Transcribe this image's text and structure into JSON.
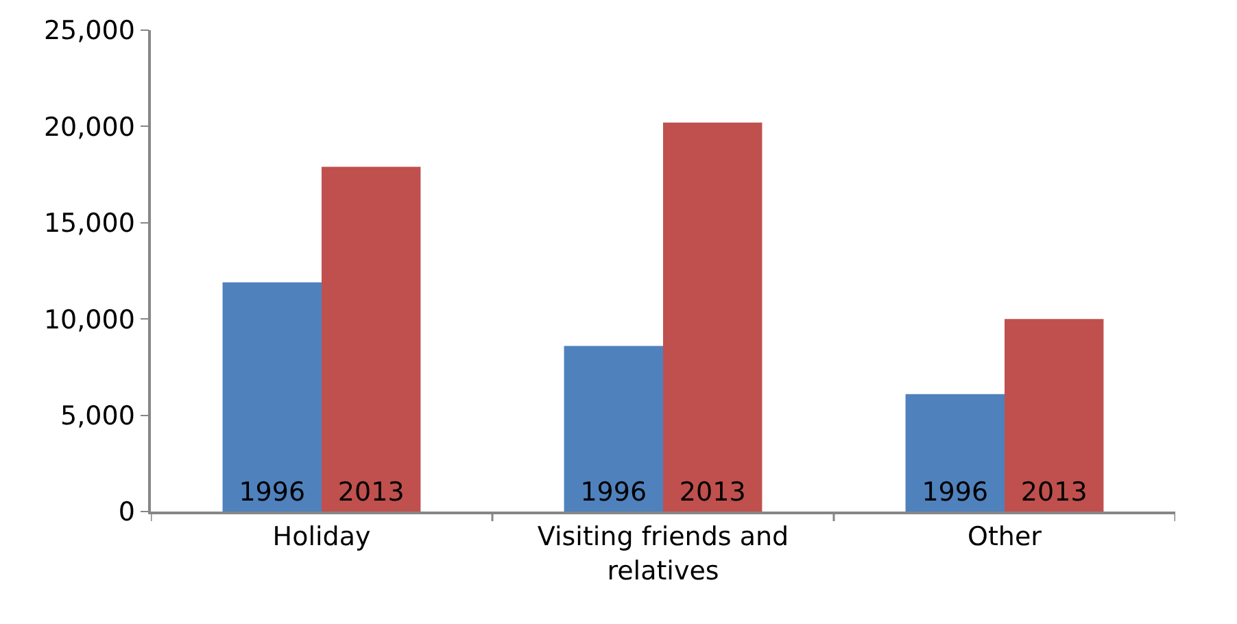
{
  "chart_data": {
    "type": "bar",
    "categories": [
      "Holiday",
      "Visiting friends and relatives",
      "Other"
    ],
    "series": [
      {
        "name": "1996",
        "color": "#4f81bd",
        "values": [
          11900,
          8600,
          6100
        ]
      },
      {
        "name": "2013",
        "color": "#c0504d",
        "values": [
          17900,
          20200,
          10000
        ]
      }
    ],
    "ylim": [
      0,
      25000
    ],
    "yticks": [
      {
        "value": 0,
        "label": "0"
      },
      {
        "value": 5000,
        "label": "5,000"
      },
      {
        "value": 10000,
        "label": "10,000"
      },
      {
        "value": 15000,
        "label": "15,000"
      },
      {
        "value": 20000,
        "label": "20,000"
      },
      {
        "value": 25000,
        "label": "25,000"
      }
    ],
    "legend": false
  }
}
